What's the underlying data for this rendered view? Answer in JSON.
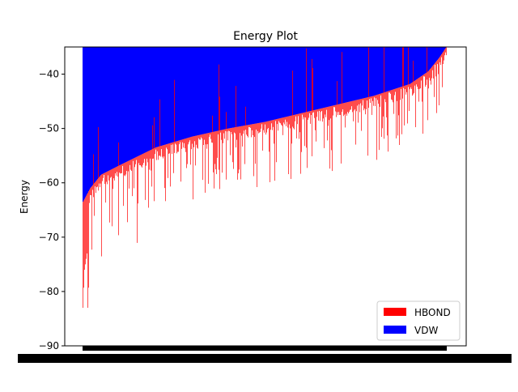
{
  "chart_data": {
    "type": "bar",
    "title": "Energy Plot",
    "xlabel": "",
    "ylabel": "Energy",
    "ylim": [
      -90,
      -35
    ],
    "yticks": [
      -90,
      -80,
      -70,
      -60,
      -50,
      -40
    ],
    "grid": false,
    "legend_position": "lower-right",
    "n_bars": 450,
    "series": [
      {
        "name": "HBOND",
        "color": "#ff0000",
        "values_sorted_vdw_curve": [
          [
            0,
            -63.5
          ],
          [
            0.02,
            -61
          ],
          [
            0.05,
            -58.5
          ],
          [
            0.1,
            -56.8
          ],
          [
            0.2,
            -53.5
          ],
          [
            0.3,
            -51.5
          ],
          [
            0.4,
            -50.0
          ],
          [
            0.5,
            -48.8
          ],
          [
            0.6,
            -47.2
          ],
          [
            0.7,
            -45.6
          ],
          [
            0.8,
            -44.0
          ],
          [
            0.9,
            -41.8
          ],
          [
            0.95,
            -39.5
          ],
          [
            0.98,
            -37.0
          ],
          [
            1.0,
            -35.0
          ]
        ],
        "notable_lows": [
          -83,
          -79.3,
          -76,
          -75,
          -74,
          -73,
          -71,
          -70.8,
          -69.5,
          -68,
          -66.5,
          -65.5,
          -65,
          -64,
          -63,
          -61,
          -60.8,
          -58.5,
          -56.2,
          -52.5
        ]
      },
      {
        "name": "VDW",
        "color": "#0000ff",
        "notable_highs": [
          -35,
          -36,
          -37.5,
          -38,
          -39,
          -40,
          -41,
          -42,
          -44.5,
          -46,
          -48.5
        ]
      }
    ]
  }
}
